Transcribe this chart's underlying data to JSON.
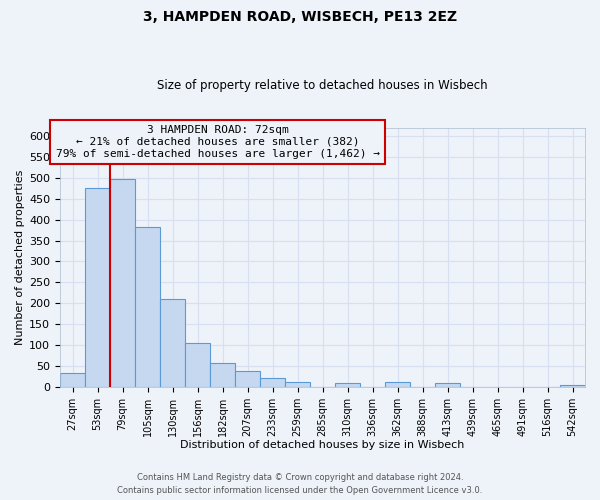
{
  "title": "3, HAMPDEN ROAD, WISBECH, PE13 2EZ",
  "subtitle": "Size of property relative to detached houses in Wisbech",
  "xlabel": "Distribution of detached houses by size in Wisbech",
  "ylabel": "Number of detached properties",
  "bar_labels": [
    "27sqm",
    "53sqm",
    "79sqm",
    "105sqm",
    "130sqm",
    "156sqm",
    "182sqm",
    "207sqm",
    "233sqm",
    "259sqm",
    "285sqm",
    "310sqm",
    "336sqm",
    "362sqm",
    "388sqm",
    "413sqm",
    "439sqm",
    "465sqm",
    "491sqm",
    "516sqm",
    "542sqm"
  ],
  "bar_heights": [
    32,
    475,
    497,
    382,
    210,
    105,
    57,
    37,
    20,
    11,
    0,
    10,
    0,
    11,
    0,
    8,
    0,
    0,
    0,
    0,
    5
  ],
  "bar_color": "#c5d8f0",
  "bar_edge_color": "#5b9bd5",
  "vline_x": 2.0,
  "vline_color": "#cc0000",
  "annotation_title": "3 HAMPDEN ROAD: 72sqm",
  "annotation_line1": "← 21% of detached houses are smaller (382)",
  "annotation_line2": "79% of semi-detached houses are larger (1,462) →",
  "annotation_box_edge": "#cc0000",
  "ylim": [
    0,
    620
  ],
  "yticks": [
    0,
    50,
    100,
    150,
    200,
    250,
    300,
    350,
    400,
    450,
    500,
    550,
    600
  ],
  "footer1": "Contains HM Land Registry data © Crown copyright and database right 2024.",
  "footer2": "Contains public sector information licensed under the Open Government Licence v3.0.",
  "bg_color": "#eef2f9",
  "grid_color": "#d8dff0",
  "plot_bg_color": "#eef2f9"
}
